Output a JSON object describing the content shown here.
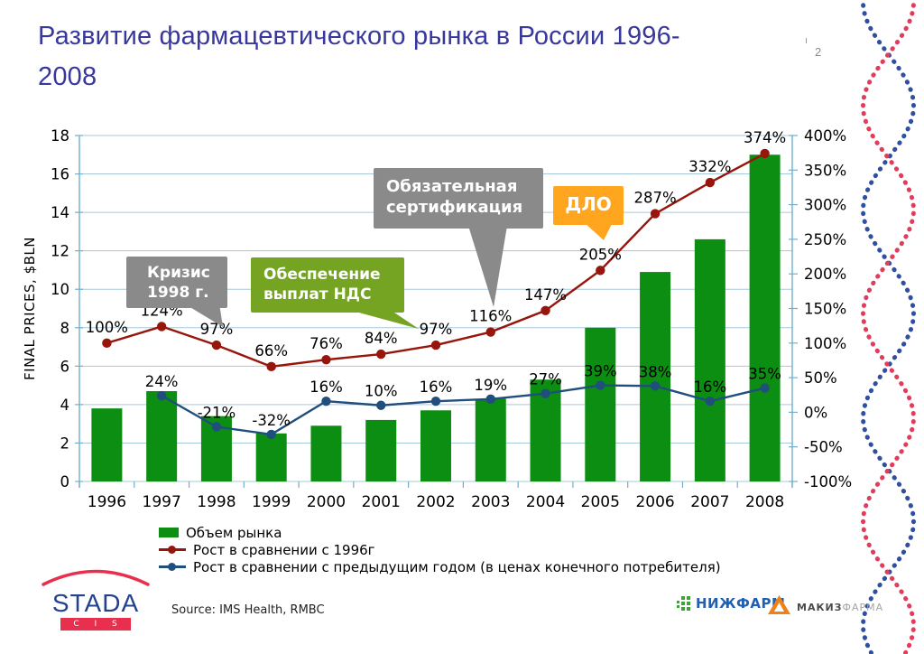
{
  "slide": {
    "title": "Развитие фармацевтического рынка в России 1996-2008",
    "page_number": "2"
  },
  "chart_data": {
    "type": "combo-bar-line",
    "categories": [
      "1996",
      "1997",
      "1998",
      "1999",
      "2000",
      "2001",
      "2002",
      "2003",
      "2004",
      "2005",
      "2006",
      "2007",
      "2008"
    ],
    "left_axis": {
      "title": "FINAL PRICES, $BLN",
      "min": 0,
      "max": 18,
      "step": 2
    },
    "right_axis": {
      "min": -100,
      "max": 400,
      "step": 50,
      "suffix": "%"
    },
    "grid": true,
    "legend_position": "bottom-left",
    "series": [
      {
        "name": "Объем рынка",
        "type": "bar",
        "axis": "left",
        "values": [
          3.8,
          4.7,
          3.4,
          2.5,
          2.9,
          3.2,
          3.7,
          4.3,
          5.3,
          8.0,
          10.9,
          12.6,
          17.0
        ]
      },
      {
        "name": "Рост в сравнении с 1996г",
        "type": "line",
        "axis": "right",
        "values": [
          100,
          124,
          97,
          66,
          76,
          84,
          97,
          116,
          147,
          205,
          287,
          332,
          374
        ],
        "point_labels": [
          "100%",
          "124%",
          "97%",
          "66%",
          "76%",
          "84%",
          "97%",
          "116%",
          "147%",
          "205%",
          "287%",
          "332%",
          "374%"
        ]
      },
      {
        "name": "Рост в сравнении с предыдущим годом (в ценах конечного потребителя)",
        "type": "line",
        "axis": "right",
        "values": [
          null,
          24,
          -21,
          -32,
          16,
          10,
          16,
          19,
          27,
          39,
          38,
          16,
          35
        ],
        "point_labels": [
          null,
          "24%",
          "-21%",
          "-32%",
          "16%",
          "10%",
          "16%",
          "19%",
          "27%",
          "39%",
          "38%",
          "16%",
          "35%"
        ]
      }
    ]
  },
  "callouts": [
    {
      "lines": [
        "Кризис",
        "1998 г."
      ],
      "color": "#8a8a8a"
    },
    {
      "lines": [
        "Обеспечение",
        "выплат НДС"
      ],
      "color": "#74a422"
    },
    {
      "lines": [
        "Обязательная",
        "сертификация"
      ],
      "color": "#8a8a8a"
    },
    {
      "lines": [
        "ДЛО"
      ],
      "color": "#ffa51e"
    }
  ],
  "source": "Source: IMS Health, RMBC",
  "logos": {
    "stada": {
      "name": "STADA",
      "sub": "C I S"
    },
    "nizhpharm": "НИЖФАРМ",
    "makiz": {
      "bold": "МАКИЗ",
      "light": "ФАРМА"
    }
  },
  "colors": {
    "title": "#38389c",
    "bar": "#0b8e11",
    "line_1996": "#97150b",
    "line_prev": "#204e7d",
    "grid": "#a6c9da",
    "axis": "#6fafcc",
    "helix_red": "#e23c5c",
    "helix_blue": "#2f4fa0",
    "stada_blue": "#24418e",
    "stada_red": "#e8304e",
    "nizh_green": "#3aa535",
    "nizh_blue": "#2060b0",
    "makiz_orange": "#f08018"
  }
}
